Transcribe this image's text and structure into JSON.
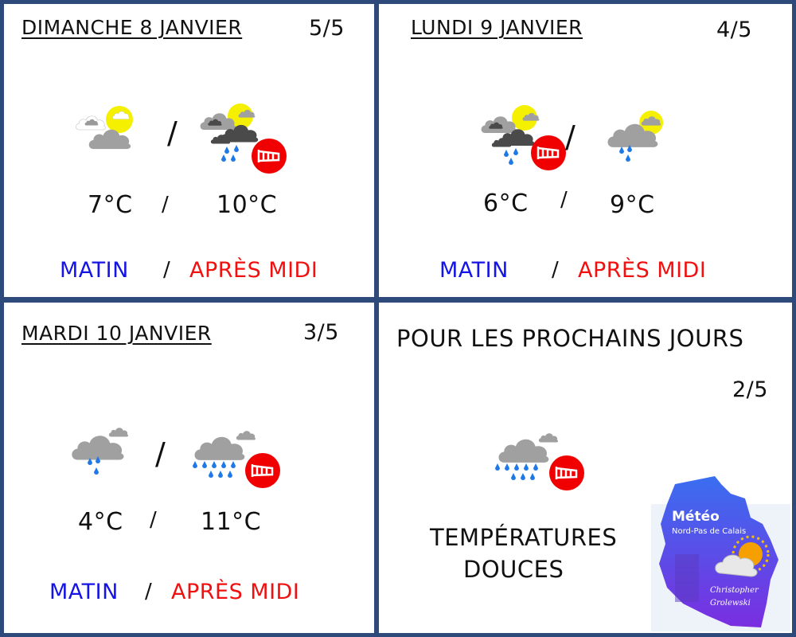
{
  "colors": {
    "frame": "#2e4a7b",
    "morning": "#1414e6",
    "afternoon": "#f01010",
    "sun": "#f5f000",
    "rain": "#1e78e6",
    "wind": "#f00000",
    "cloud_gray": "#a0a0a0",
    "cloud_dark": "#4a4a4a"
  },
  "days": [
    {
      "title": "DIMANCHE 8 JANVIER",
      "score": "5/5",
      "morning_icon": "sun-clouds",
      "afternoon_icon": "sun-clouds-rain-wind",
      "morning_temp": "7°C",
      "afternoon_temp": "10°C",
      "sep": "/",
      "morning_label": "MATIN",
      "afternoon_label": "APRÈS MIDI"
    },
    {
      "title": "LUNDI 9 JANVIER",
      "score": "4/5",
      "morning_icon": "sun-clouds-rain-wind",
      "afternoon_icon": "sun-cloud-showers",
      "morning_temp": "6°C",
      "afternoon_temp": "9°C",
      "sep": "/",
      "morning_label": "MATIN",
      "afternoon_label": "APRÈS MIDI"
    },
    {
      "title": "MARDI 10 JANVIER",
      "score": "3/5",
      "morning_icon": "cloud-showers",
      "afternoon_icon": "cloud-heavy-rain-wind",
      "morning_temp": "4°C",
      "afternoon_temp": "11°C",
      "sep": "/",
      "morning_label": "MATIN",
      "afternoon_label": "APRÈS MIDI"
    }
  ],
  "outlook": {
    "title": "POUR LES PROCHAINS JOURS",
    "score": "2/5",
    "icon": "cloud-heavy-rain-wind",
    "text_line1": "TEMPÉRATURES",
    "text_line2": "DOUCES"
  },
  "logo": {
    "line1": "Météo",
    "line2": "Nord-Pas de Calais",
    "author1": "Christopher",
    "author2": "Grolewski"
  }
}
